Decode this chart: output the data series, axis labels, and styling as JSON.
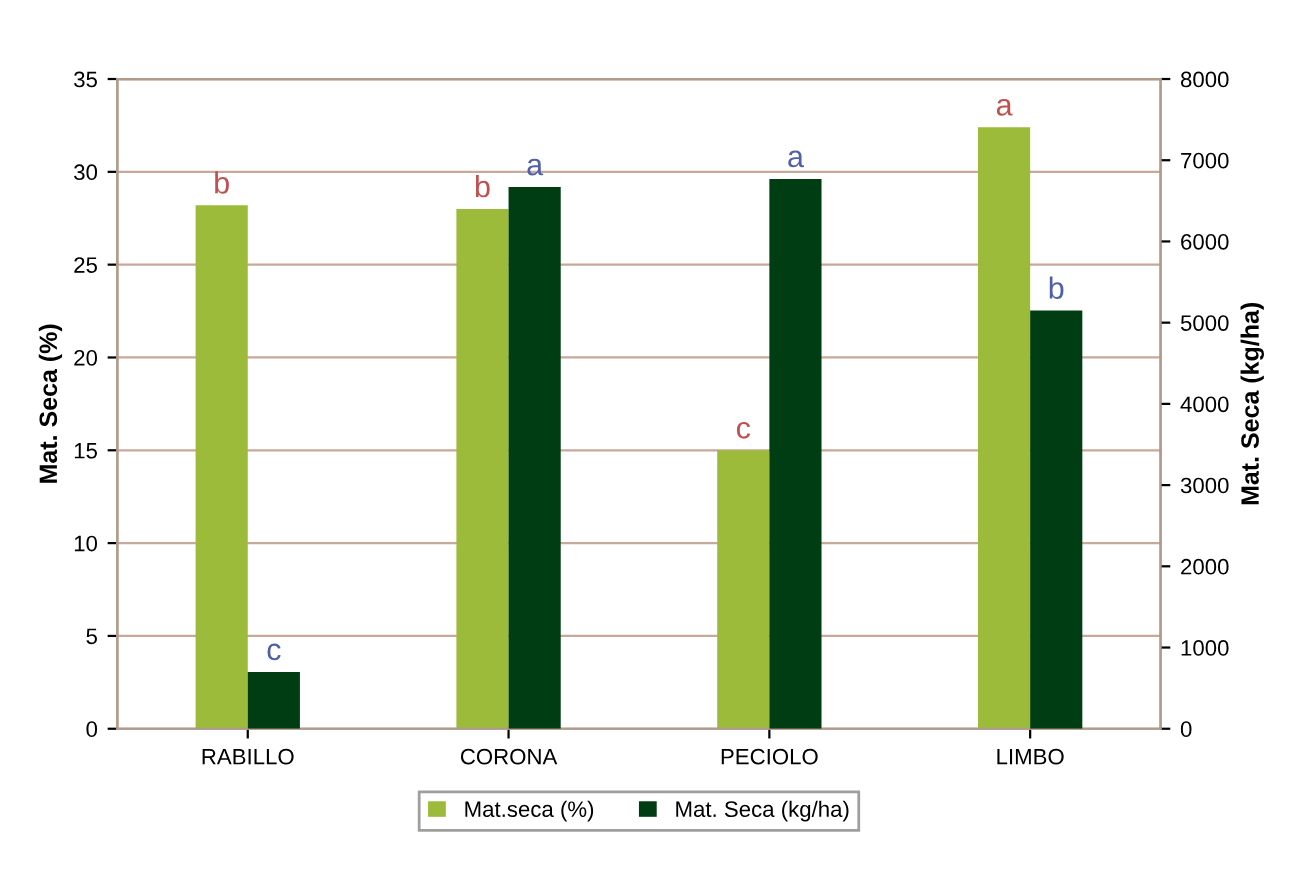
{
  "chart_data": {
    "type": "bar",
    "categories": [
      "RABILLO",
      "CORONA",
      "PECIOLO",
      "LIMBO"
    ],
    "series": [
      {
        "name": "Mat.seca (%)",
        "color": "#9dbb3a",
        "values": [
          28.2,
          28.0,
          15.0,
          32.4
        ],
        "value_labels": [
          "b",
          "b",
          "c",
          "a"
        ]
      },
      {
        "name": "Mat. Seca (kg/ha)",
        "color": "#003d12",
        "values": [
          700,
          6670,
          6770,
          5150
        ],
        "value_labels": [
          "c",
          "a",
          "a",
          "b"
        ],
        "axis": "y2"
      }
    ],
    "ylabel": "Mat. Seca (%)",
    "y2label": "Mat. Seca (kg/ha)",
    "ylim": [
      0,
      35
    ],
    "yticks": [
      0,
      5,
      10,
      15,
      20,
      25,
      30,
      35
    ],
    "y2lim": [
      0,
      8000
    ],
    "y2ticks": [
      0,
      1000,
      2000,
      3000,
      4000,
      5000,
      6000,
      7000,
      8000
    ],
    "grid": "y",
    "legend": "bottom"
  }
}
